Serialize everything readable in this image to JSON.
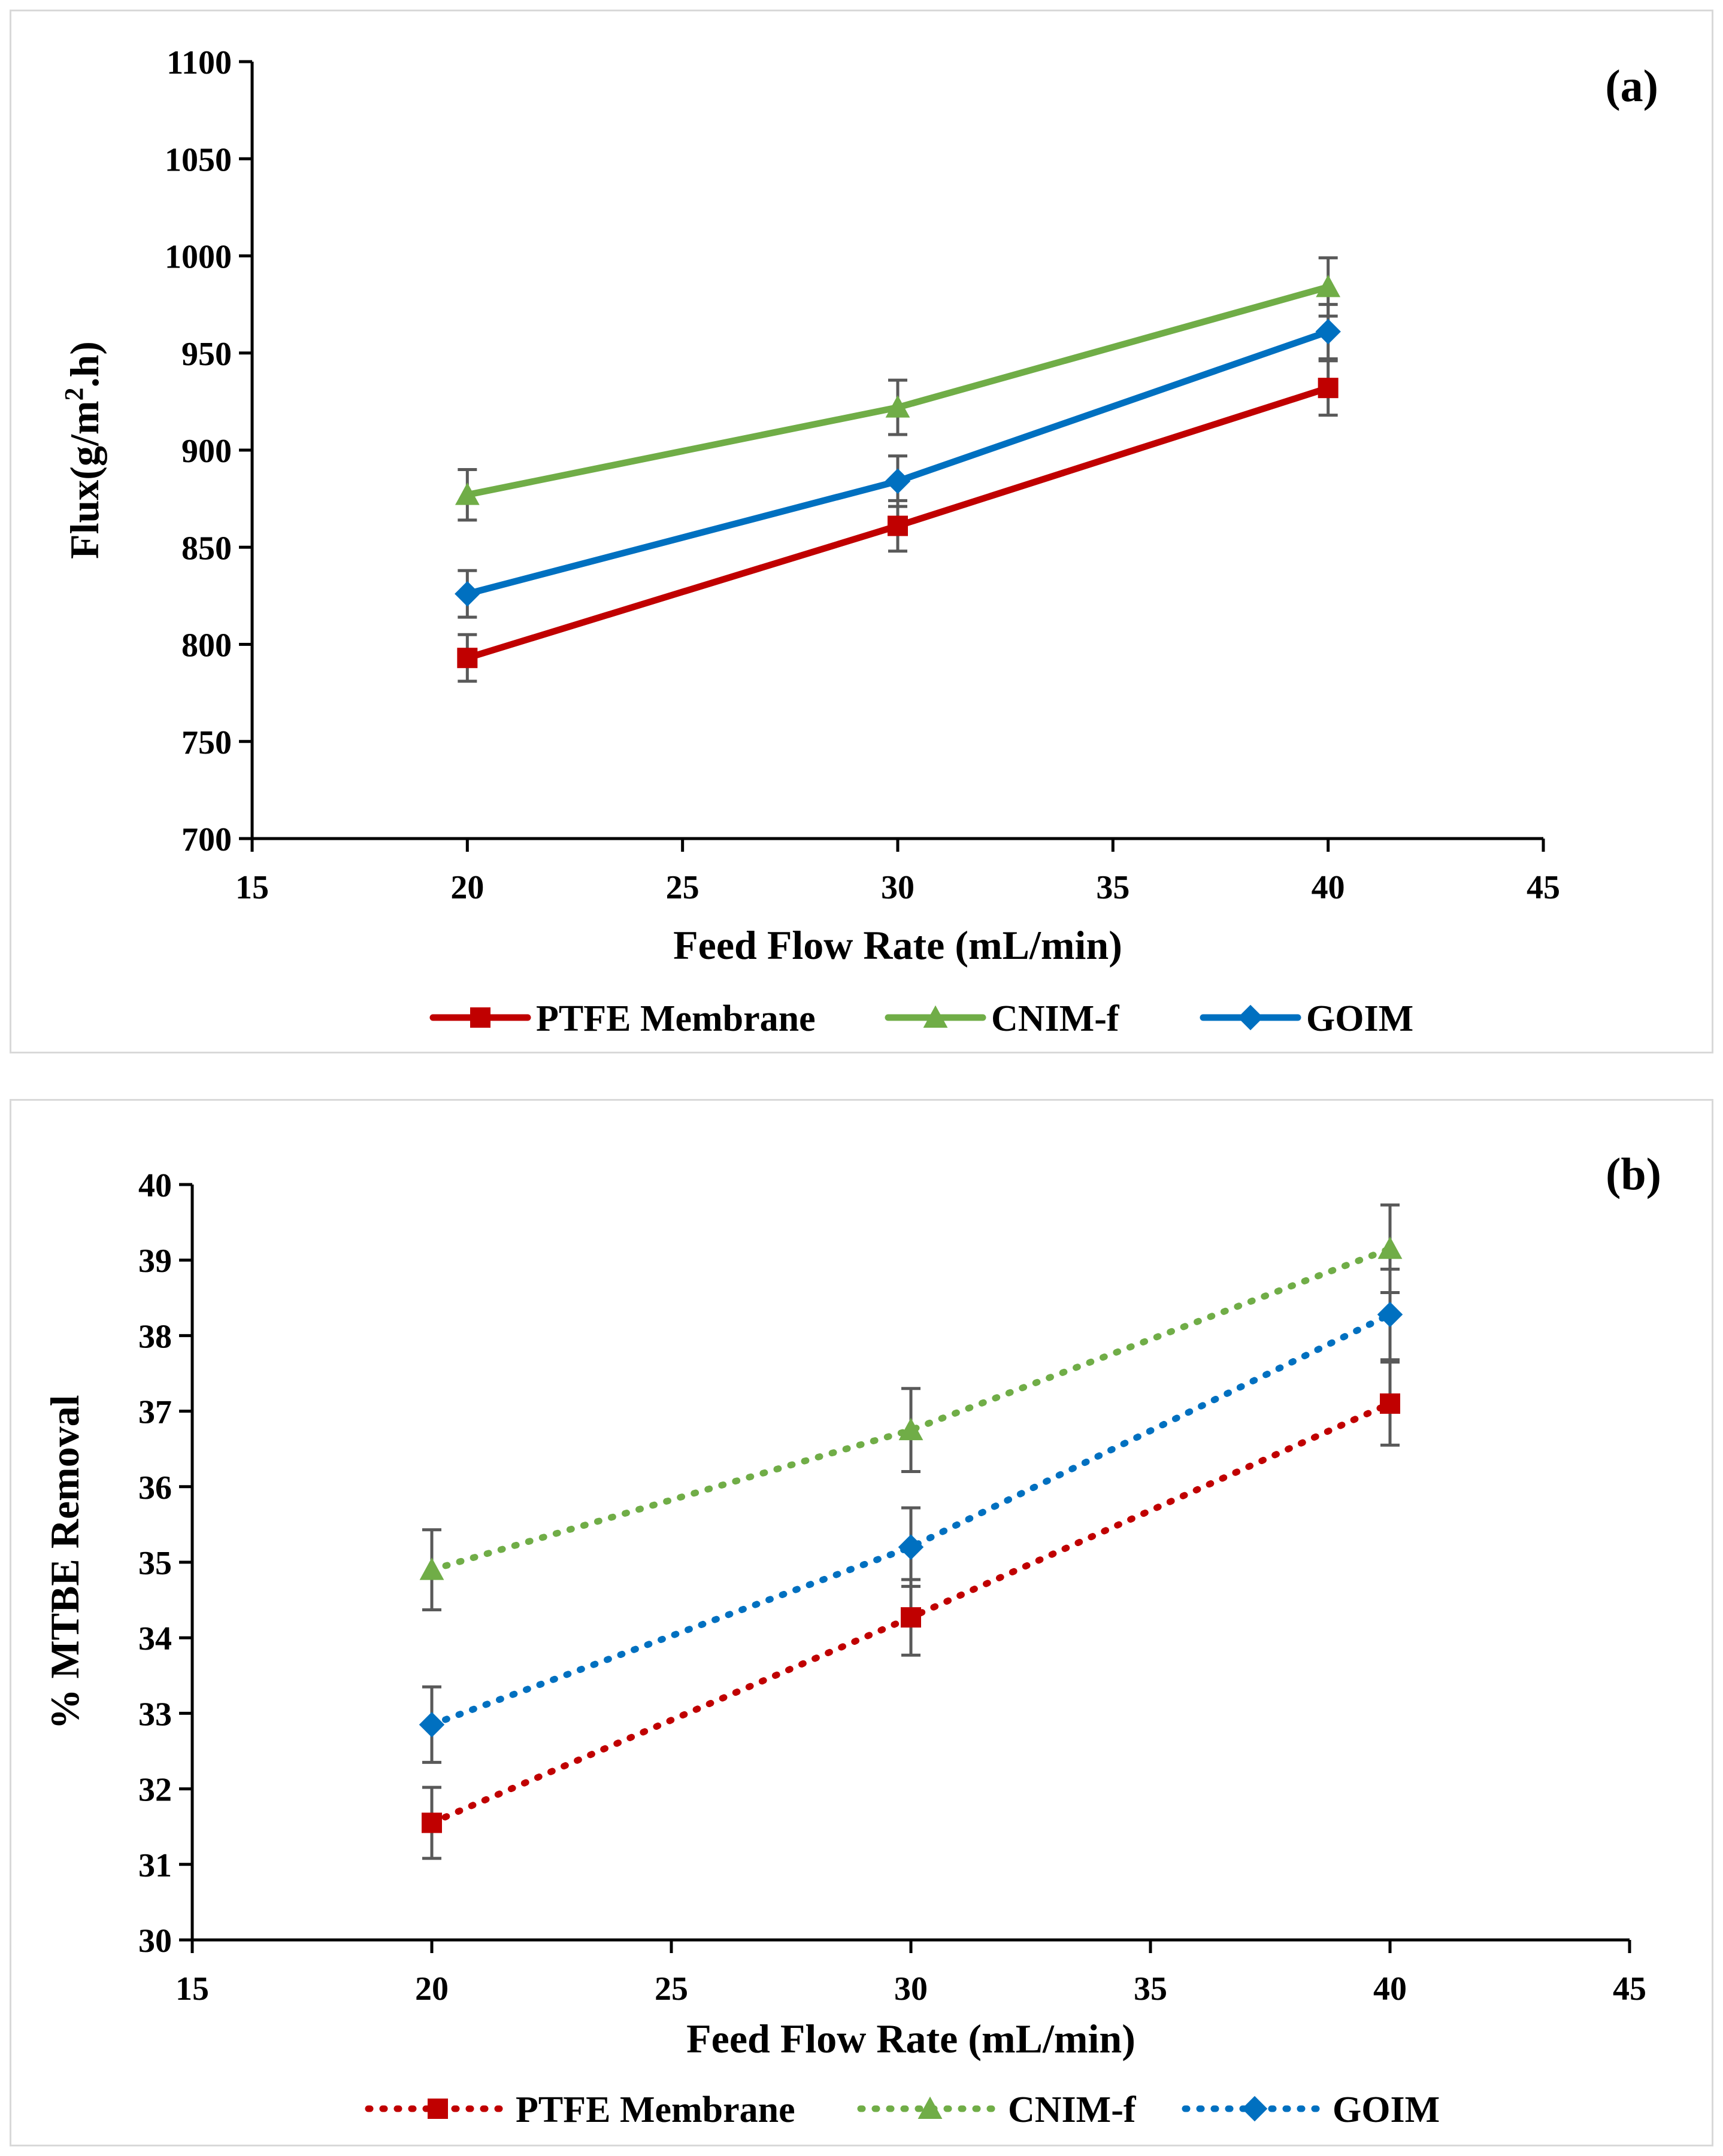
{
  "chart_data": [
    {
      "type": "line",
      "panel_label": "(a)",
      "xlabel": "Feed Flow Rate (mL/min)",
      "ylabel_main": "Flux(g/m",
      "ylabel_sup": "2",
      "ylabel_tail": ".h)",
      "xlim": [
        15,
        45
      ],
      "ylim": [
        700,
        1100
      ],
      "xticks": [
        15,
        20,
        25,
        30,
        35,
        40,
        45
      ],
      "yticks": [
        700,
        750,
        800,
        850,
        900,
        950,
        1000,
        1050,
        1100
      ],
      "x": [
        20,
        30,
        40
      ],
      "line_style": "solid",
      "series": [
        {
          "name": "PTFE Membrane",
          "marker": "square",
          "color": "#c00000",
          "values": [
            793,
            861,
            932
          ],
          "errors": [
            12,
            13,
            14
          ]
        },
        {
          "name": "CNIM-f",
          "marker": "triangle",
          "color": "#70ad47",
          "values": [
            877,
            922,
            984
          ],
          "errors": [
            13,
            14,
            15
          ]
        },
        {
          "name": "GOIM",
          "marker": "diamond",
          "color": "#0070c0",
          "values": [
            826,
            884,
            961
          ],
          "errors": [
            12,
            13,
            14
          ]
        }
      ]
    },
    {
      "type": "line",
      "panel_label": "(b)",
      "xlabel": "Feed Flow Rate (mL/min)",
      "ylabel_main": "% MTBE Removal",
      "ylabel_sup": "",
      "ylabel_tail": "",
      "xlim": [
        15,
        45
      ],
      "ylim": [
        30,
        40
      ],
      "xticks": [
        15,
        20,
        25,
        30,
        35,
        40,
        45
      ],
      "yticks": [
        30,
        31,
        32,
        33,
        34,
        35,
        36,
        37,
        38,
        39,
        40
      ],
      "x": [
        20,
        30,
        40
      ],
      "line_style": "dotted",
      "series": [
        {
          "name": "PTFE Membrane",
          "marker": "square",
          "color": "#c00000",
          "values": [
            31.55,
            34.27,
            37.1
          ],
          "errors": [
            0.47,
            0.5,
            0.55
          ]
        },
        {
          "name": "CNIM-f",
          "marker": "triangle",
          "color": "#70ad47",
          "values": [
            34.9,
            36.75,
            39.15
          ],
          "errors": [
            0.53,
            0.55,
            0.58
          ]
        },
        {
          "name": "GOIM",
          "marker": "diamond",
          "color": "#0070c0",
          "values": [
            32.85,
            35.2,
            38.28
          ],
          "errors": [
            0.5,
            0.52,
            0.6
          ]
        }
      ]
    }
  ]
}
